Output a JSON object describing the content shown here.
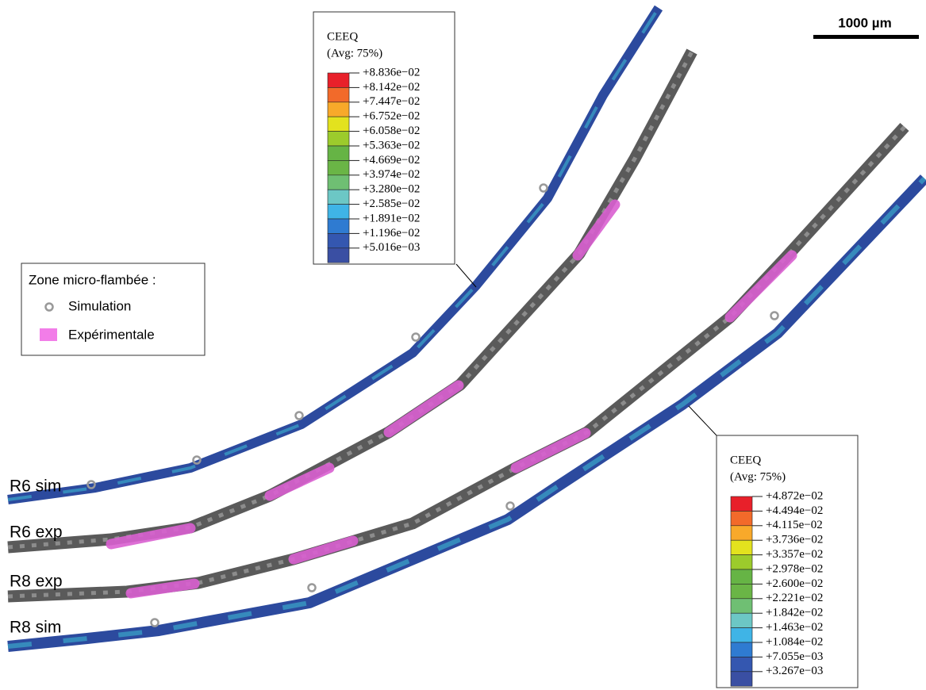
{
  "scale_bar": "1000 µm",
  "legend": {
    "title": "Zone micro-flambée :",
    "items": [
      "Simulation",
      "Expérimentale"
    ]
  },
  "colorbars": [
    {
      "title": "CEEQ",
      "subtitle": "(Avg: 75%)",
      "labels": [
        "+8.836e−02",
        "+8.142e−02",
        "+7.447e−02",
        "+6.752e−02",
        "+6.058e−02",
        "+5.363e−02",
        "+4.669e−02",
        "+3.974e−02",
        "+3.280e−02",
        "+2.585e−02",
        "+1.891e−02",
        "+1.196e−02",
        "+5.016e−03"
      ]
    },
    {
      "title": "CEEQ",
      "subtitle": "(Avg: 75%)",
      "labels": [
        "+4.872e−02",
        "+4.494e−02",
        "+4.115e−02",
        "+3.736e−02",
        "+3.357e−02",
        "+2.978e−02",
        "+2.600e−02",
        "+2.221e−02",
        "+1.842e−02",
        "+1.463e−02",
        "+1.084e−02",
        "+7.055e−03",
        "+3.267e−03"
      ]
    }
  ],
  "specimen_labels": [
    "R6 sim",
    "R6 exp",
    "R8 exp",
    "R8 sim"
  ]
}
